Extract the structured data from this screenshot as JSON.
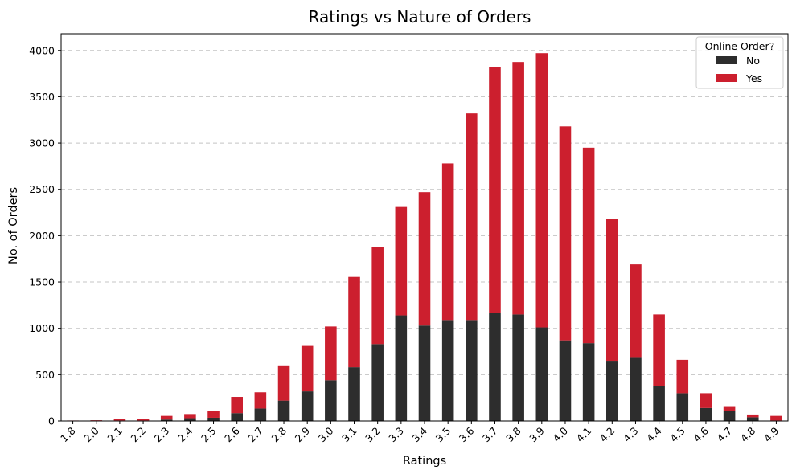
{
  "chart_data": {
    "type": "bar",
    "stacked": true,
    "title": "Ratings vs Nature of Orders",
    "xlabel": "Ratings",
    "ylabel": "No. of Orders",
    "ylim": [
      0,
      4180
    ],
    "yticks": [
      0,
      500,
      1000,
      1500,
      2000,
      2500,
      3000,
      3500,
      4000
    ],
    "grid": "y-dashed",
    "legend": {
      "title": "Online Order?",
      "placement": "top-right"
    },
    "categories": [
      "1.8",
      "2.0",
      "2.1",
      "2.2",
      "2.3",
      "2.4",
      "2.5",
      "2.6",
      "2.7",
      "2.8",
      "2.9",
      "3.0",
      "3.1",
      "3.2",
      "3.3",
      "3.4",
      "3.5",
      "3.6",
      "3.7",
      "3.8",
      "3.9",
      "4.0",
      "4.1",
      "4.2",
      "4.3",
      "4.4",
      "4.5",
      "4.6",
      "4.7",
      "4.8",
      "4.9"
    ],
    "series": [
      {
        "name": "No",
        "color": "#2d2d2d",
        "values": [
          3,
          5,
          5,
          5,
          15,
          30,
          35,
          85,
          135,
          220,
          320,
          440,
          580,
          830,
          1140,
          1030,
          1090,
          1090,
          1170,
          1150,
          1010,
          870,
          840,
          650,
          690,
          380,
          300,
          140,
          110,
          40,
          5
        ]
      },
      {
        "name": "Yes",
        "color": "#cc1f2e",
        "values": [
          2,
          3,
          20,
          20,
          40,
          45,
          70,
          175,
          175,
          380,
          490,
          580,
          975,
          1045,
          1170,
          1440,
          1690,
          2230,
          2650,
          2725,
          2960,
          2310,
          2110,
          1530,
          1000,
          770,
          360,
          160,
          50,
          30,
          50
        ]
      }
    ]
  }
}
